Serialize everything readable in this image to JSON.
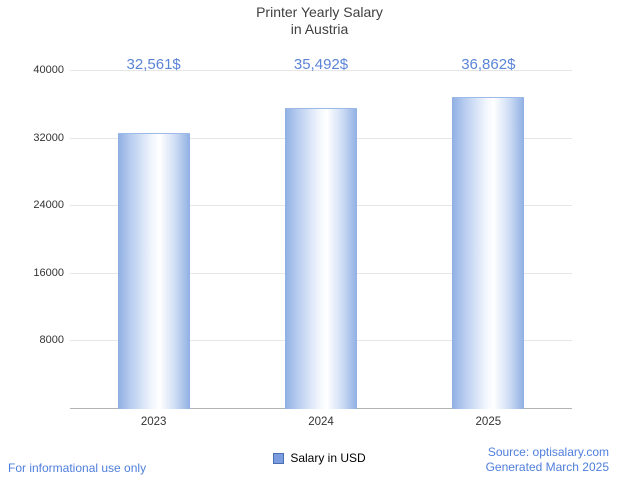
{
  "chart_data": {
    "type": "bar",
    "title": "Printer Yearly Salary in Austria",
    "title_line1": "Printer Yearly Salary",
    "title_line2": "in Austria",
    "categories": [
      "2023",
      "2024",
      "2025"
    ],
    "values": [
      32561,
      35492,
      36862
    ],
    "value_labels": [
      "32,561$",
      "35,492$",
      "36,862$"
    ],
    "ylim": [
      0,
      40000
    ],
    "yticks": [
      8000,
      16000,
      24000,
      32000,
      40000
    ],
    "grid": true,
    "legend": "Salary in USD",
    "legend_position": "bottom-center",
    "bar_color_edge": "#8fafe3",
    "bar_color_center": "#ffffff",
    "value_label_color": "#5b84d6"
  },
  "footer": {
    "left": "For informational use only",
    "source": "Source: optisalary.com",
    "generated": "Generated March 2025"
  }
}
